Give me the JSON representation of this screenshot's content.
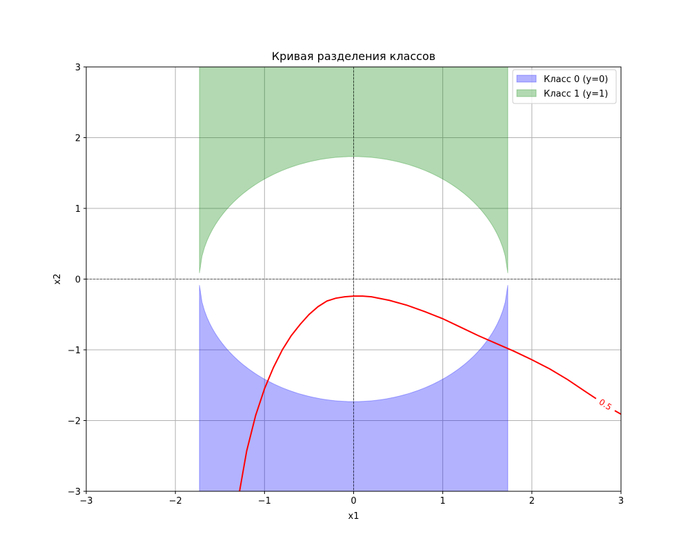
{
  "chart_data": {
    "type": "area",
    "title": "Кривая разделения классов",
    "xlabel": "x1",
    "ylabel": "x2",
    "xlim": [
      -3,
      3
    ],
    "ylim": [
      -3,
      3
    ],
    "xticks": [
      -3,
      -2,
      -1,
      0,
      1,
      2,
      3
    ],
    "yticks": [
      -3,
      -2,
      -1,
      0,
      1,
      2,
      3
    ],
    "grid": true,
    "legend_position": "top-right",
    "regions": [
      {
        "name": "Класс 0 (y=0)",
        "color": "#0000ff",
        "x_range": [
          -1.73,
          1.73
        ],
        "upper_edge": "-sqrt(3 - x1^2)",
        "lower_edge": -3
      },
      {
        "name": "Класс 1 (y=1)",
        "color": "#008000",
        "x_range": [
          -1.73,
          1.73
        ],
        "lower_edge": "sqrt(3 - x1^2)",
        "upper_edge": 3
      }
    ],
    "contour": {
      "level_label": "0.5",
      "color": "#ff0000",
      "points": [
        [
          -1.28,
          -3.0
        ],
        [
          -1.2,
          -2.43
        ],
        [
          -1.1,
          -1.93
        ],
        [
          -1.0,
          -1.55
        ],
        [
          -0.9,
          -1.25
        ],
        [
          -0.8,
          -1.0
        ],
        [
          -0.7,
          -0.8
        ],
        [
          -0.6,
          -0.64
        ],
        [
          -0.5,
          -0.5
        ],
        [
          -0.4,
          -0.39
        ],
        [
          -0.3,
          -0.31
        ],
        [
          -0.2,
          -0.27
        ],
        [
          -0.1,
          -0.25
        ],
        [
          0.0,
          -0.24
        ],
        [
          0.1,
          -0.24
        ],
        [
          0.2,
          -0.25
        ],
        [
          0.4,
          -0.3
        ],
        [
          0.6,
          -0.37
        ],
        [
          0.8,
          -0.46
        ],
        [
          1.0,
          -0.56
        ],
        [
          1.2,
          -0.68
        ],
        [
          1.4,
          -0.8
        ],
        [
          1.6,
          -0.91
        ],
        [
          1.8,
          -1.02
        ],
        [
          2.0,
          -1.14
        ],
        [
          2.2,
          -1.27
        ],
        [
          2.4,
          -1.42
        ],
        [
          2.6,
          -1.59
        ],
        [
          2.72,
          -1.69
        ],
        [
          2.93,
          -1.86
        ],
        [
          3.0,
          -1.91
        ]
      ]
    }
  }
}
